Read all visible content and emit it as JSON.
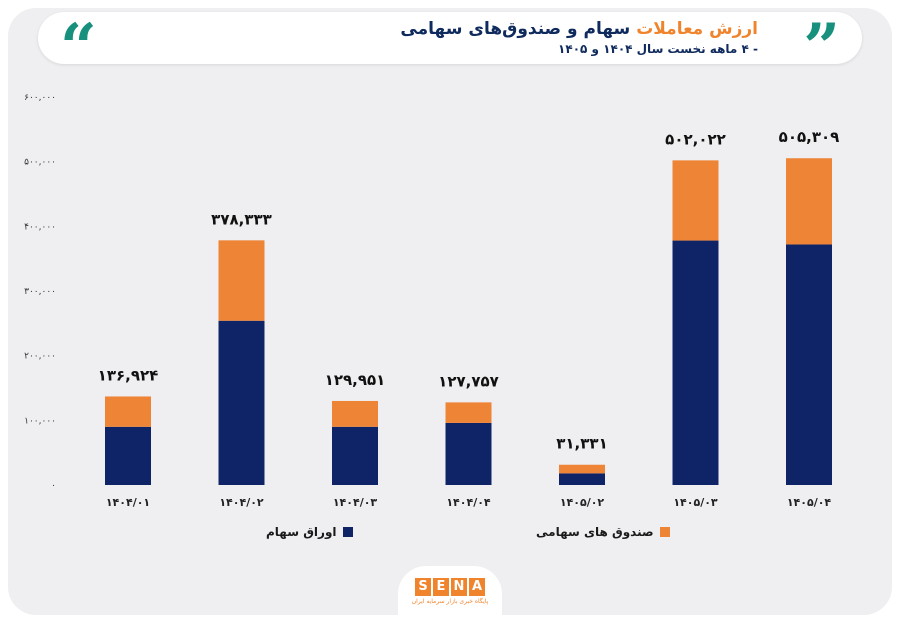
{
  "header": {
    "title_highlight": "ارزش معاملات",
    "title_rest": "سهام و صندوق‌های سهامی",
    "subtitle": "- ۴ ماهه نخست سال ۱۴۰۴ و ۱۴۰۵",
    "quote_open": "“",
    "quote_close": "”"
  },
  "colors": {
    "stock": "#0f2467",
    "fund": "#ee8436",
    "accent": "#f0842d",
    "quote": "#18907e"
  },
  "chart_data": {
    "type": "bar",
    "stacked": true,
    "categories": [
      "۱۴۰۴/۰۱",
      "۱۴۰۴/۰۲",
      "۱۴۰۴/۰۳",
      "۱۴۰۴/۰۴",
      "۱۴۰۵/۰۲",
      "۱۴۰۵/۰۳",
      "۱۴۰۵/۰۴"
    ],
    "series": [
      {
        "name": "اوراق سهام",
        "values": [
          90000,
          254000,
          90000,
          96000,
          18000,
          378000,
          372000
        ]
      },
      {
        "name": "صندوق های سهامی",
        "values": [
          46924,
          124333,
          39951,
          31757,
          13331,
          124022,
          133309
        ]
      }
    ],
    "totals": [
      136924,
      378333,
      129951,
      127757,
      31331,
      502022,
      505309
    ],
    "total_labels": [
      "۱۳۶,۹۲۴",
      "۳۷۸,۳۳۳",
      "۱۲۹,۹۵۱",
      "۱۲۷,۷۵۷",
      "۳۱,۳۳۱",
      "۵۰۲,۰۲۲",
      "۵۰۵,۳۰۹"
    ],
    "y_ticks": [
      0,
      100000,
      200000,
      300000,
      400000,
      500000,
      600000
    ],
    "y_tick_labels": [
      "۰",
      "۱۰۰,۰۰۰",
      "۲۰۰,۰۰۰",
      "۳۰۰,۰۰۰",
      "۴۰۰,۰۰۰",
      "۵۰۰,۰۰۰",
      "۶۰۰,۰۰۰"
    ],
    "ylim": [
      0,
      600000
    ],
    "grid": false,
    "legend_position": "bottom"
  },
  "legend": {
    "stock_label": "اوراق سهام",
    "fund_label": "صندوق های سهامی"
  },
  "logo": {
    "letters": [
      "S",
      "E",
      "N",
      "A"
    ],
    "tagline": "پایگاه خبری بازار سرمایه ایران"
  }
}
